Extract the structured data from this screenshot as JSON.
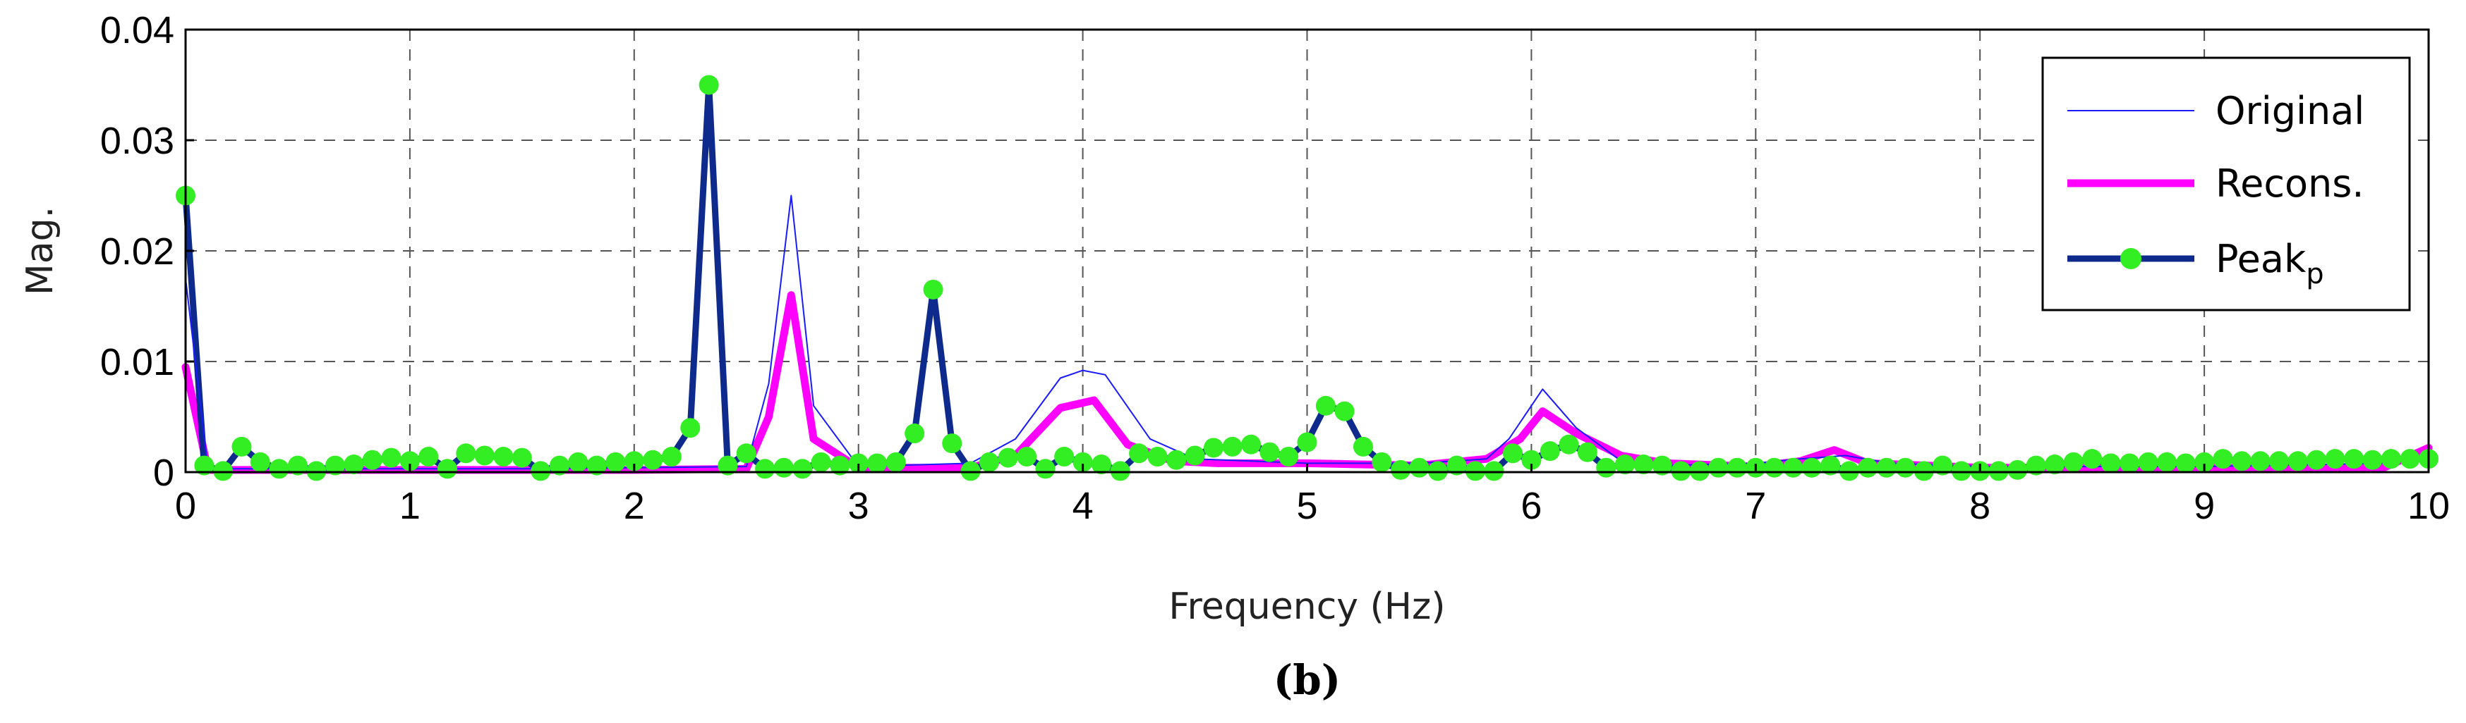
{
  "figure": {
    "caption": "(b)"
  },
  "colors": {
    "original": "#1a1aff",
    "recons": "#ff00ff",
    "peak_line": "#0d2a8c",
    "peak_marker": "#33ee22"
  },
  "chart_data": {
    "type": "line",
    "xlabel": "Frequency (Hz)",
    "ylabel": "Mag.",
    "xlim": [
      0,
      10
    ],
    "ylim": [
      0,
      0.04
    ],
    "xticks": [
      "0",
      "1",
      "2",
      "3",
      "4",
      "5",
      "6",
      "7",
      "8",
      "9",
      "10"
    ],
    "yticks": [
      "0",
      "0.01",
      "0.02",
      "0.03",
      "0.04"
    ],
    "grid": true,
    "legend_position": "top-right",
    "legend": [
      {
        "key": "original",
        "label": "Original"
      },
      {
        "key": "recons",
        "label": "Recons."
      },
      {
        "key": "peak",
        "label": "Peak",
        "subscript": "p"
      }
    ],
    "series": [
      {
        "name": "Original",
        "key": "original",
        "x": [
          0,
          0.1,
          0.2,
          0.3,
          0.5,
          1,
          1.5,
          2,
          2.5,
          2.6,
          2.7,
          2.8,
          3,
          3.5,
          3.7,
          3.9,
          4.0,
          4.1,
          4.3,
          4.5,
          5,
          5.5,
          5.8,
          5.9,
          6.05,
          6.2,
          6.4,
          6.6,
          7,
          7.2,
          7.4,
          7.6,
          8,
          9,
          9.8,
          10
        ],
        "y": [
          0.0175,
          0.0003,
          0.0003,
          0.0003,
          0.0003,
          0.0003,
          0.0003,
          0.0004,
          0.0005,
          0.008,
          0.025,
          0.006,
          0.0005,
          0.0008,
          0.003,
          0.0085,
          0.0092,
          0.0088,
          0.003,
          0.0012,
          0.0008,
          0.0008,
          0.0012,
          0.003,
          0.0075,
          0.004,
          0.001,
          0.0006,
          0.0008,
          0.0012,
          0.0015,
          0.0008,
          0.0005,
          0.0005,
          0.0008,
          0.0015
        ]
      },
      {
        "name": "Recons.",
        "key": "recons",
        "x": [
          0,
          0.1,
          0.2,
          0.5,
          1,
          1.5,
          2,
          2.5,
          2.6,
          2.7,
          2.8,
          3,
          3.5,
          3.7,
          3.9,
          4.05,
          4.2,
          4.4,
          4.6,
          5,
          5.5,
          5.8,
          5.95,
          6.05,
          6.2,
          6.4,
          6.6,
          7,
          7.2,
          7.35,
          7.5,
          8,
          9,
          9.8,
          10
        ],
        "y": [
          0.0095,
          0.0002,
          0.0002,
          0.0002,
          0.0002,
          0.0002,
          0.0002,
          0.0003,
          0.005,
          0.016,
          0.003,
          0.0004,
          0.0004,
          0.0015,
          0.0058,
          0.0065,
          0.0025,
          0.001,
          0.0008,
          0.0008,
          0.0006,
          0.0012,
          0.003,
          0.0055,
          0.0035,
          0.0015,
          0.0008,
          0.0005,
          0.001,
          0.002,
          0.0008,
          0.0004,
          0.0004,
          0.0004,
          0.0022
        ]
      },
      {
        "name": "Peak",
        "key": "peak",
        "x": [
          0,
          0.083,
          0.167,
          0.25,
          0.333,
          0.417,
          0.5,
          0.583,
          0.667,
          0.75,
          0.833,
          0.917,
          1,
          1.083,
          1.167,
          1.25,
          1.333,
          1.417,
          1.5,
          1.583,
          1.667,
          1.75,
          1.833,
          1.917,
          2,
          2.083,
          2.167,
          2.25,
          2.333,
          2.417,
          2.5,
          2.583,
          2.667,
          2.75,
          2.833,
          2.917,
          3,
          3.083,
          3.167,
          3.25,
          3.333,
          3.417,
          3.5,
          3.583,
          3.667,
          3.75,
          3.833,
          3.917,
          4,
          4.083,
          4.167,
          4.25,
          4.333,
          4.417,
          4.5,
          4.583,
          4.667,
          4.75,
          4.833,
          4.917,
          5,
          5.083,
          5.167,
          5.25,
          5.333,
          5.417,
          5.5,
          5.583,
          5.667,
          5.75,
          5.833,
          5.917,
          6,
          6.083,
          6.167,
          6.25,
          6.333,
          6.417,
          6.5,
          6.583,
          6.667,
          6.75,
          6.833,
          6.917,
          7,
          7.083,
          7.167,
          7.25,
          7.333,
          7.417,
          7.5,
          7.583,
          7.667,
          7.75,
          7.833,
          7.917,
          8,
          8.083,
          8.167,
          8.25,
          8.333,
          8.417,
          8.5,
          8.583,
          8.667,
          8.75,
          8.833,
          8.917,
          9,
          9.083,
          9.167,
          9.25,
          9.333,
          9.417,
          9.5,
          9.583,
          9.667,
          9.75,
          9.833,
          9.917,
          10
        ],
        "y": [
          0.025,
          0.0006,
          0.0001,
          0.0023,
          0.0009,
          0.0003,
          0.0006,
          0.0001,
          0.0006,
          0.0007,
          0.0011,
          0.0013,
          0.001,
          0.0014,
          0.0003,
          0.0017,
          0.0015,
          0.0014,
          0.0013,
          0.0001,
          0.0006,
          0.0009,
          0.0006,
          0.0009,
          0.001,
          0.0011,
          0.0014,
          0.004,
          0.035,
          0.0006,
          0.0017,
          0.0003,
          0.0004,
          0.0003,
          0.0009,
          0.0006,
          0.0008,
          0.0008,
          0.0009,
          0.0035,
          0.0165,
          0.0026,
          0.0001,
          0.0009,
          0.0013,
          0.0014,
          0.0003,
          0.0014,
          0.0009,
          0.0007,
          0.0001,
          0.0017,
          0.0014,
          0.0011,
          0.0015,
          0.0022,
          0.0023,
          0.0025,
          0.0018,
          0.0014,
          0.0027,
          0.006,
          0.0055,
          0.0023,
          0.0009,
          0.0002,
          0.0004,
          0.0001,
          0.0006,
          0.0001,
          0.0001,
          0.0017,
          0.0011,
          0.0019,
          0.0025,
          0.0018,
          0.0004,
          0.0007,
          0.0007,
          0.0006,
          0.0001,
          0.0001,
          0.0004,
          0.0004,
          0.0004,
          0.0004,
          0.0004,
          0.0004,
          0.0006,
          0.0001,
          0.0004,
          0.0004,
          0.0004,
          0.0001,
          0.0006,
          0.0001,
          0.0001,
          0.0001,
          0.0002,
          0.0006,
          0.0007,
          0.0009,
          0.0012,
          0.0008,
          0.0008,
          0.0009,
          0.0009,
          0.0008,
          0.0009,
          0.0012,
          0.001,
          0.001,
          0.001,
          0.001,
          0.0011,
          0.0012,
          0.0012,
          0.0011,
          0.0012,
          0.0012,
          0.0012
        ]
      }
    ]
  }
}
